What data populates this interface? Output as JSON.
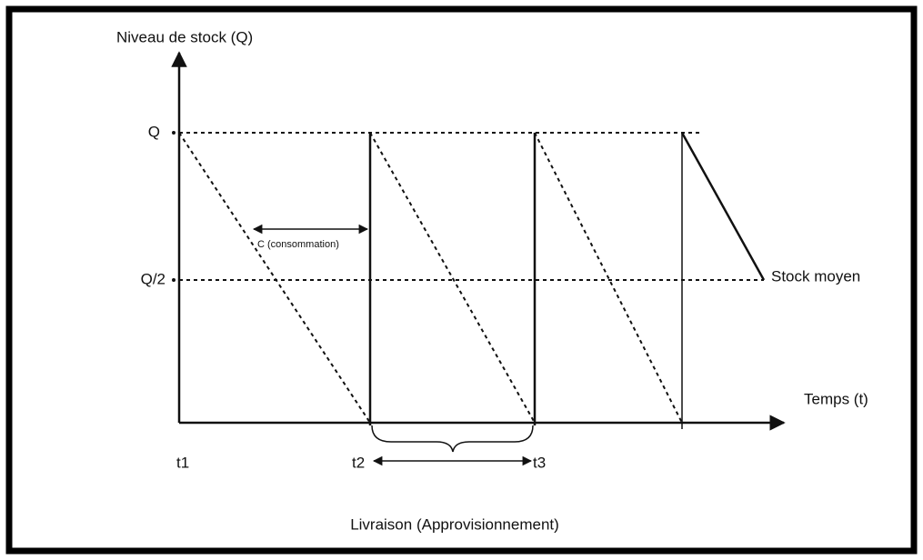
{
  "y_axis_label": "Niveau de stock (Q)",
  "x_axis_label": "Temps (t)",
  "level_labels": [
    "Q",
    "Q/2"
  ],
  "consumption_label": "C (consommation)",
  "average_label": "Stock moyen",
  "time_labels": [
    "t1",
    "t2",
    "t3"
  ],
  "delivery_label": "Livraison (Approvisionnement)"
}
